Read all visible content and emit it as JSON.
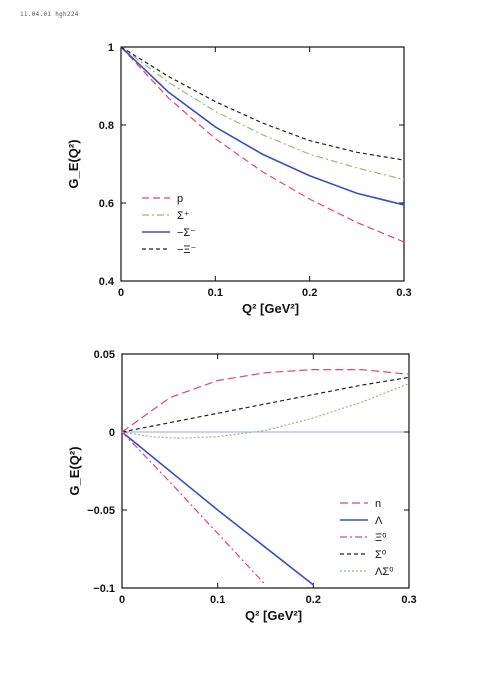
{
  "header": {
    "text": "11.04.01 hgh224"
  },
  "chart_data": [
    {
      "type": "line",
      "title": "",
      "xlabel": "Q² [GeV²]",
      "ylabel": "G_E(Q²)",
      "xlim": [
        0,
        0.3
      ],
      "ylim": [
        0.4,
        1.0
      ],
      "xticks": [
        "0",
        "0.1",
        "0.2",
        "0.3"
      ],
      "yticks": [
        "0.4",
        "0.6",
        "0.8",
        "1"
      ],
      "legend_position": "lower-left",
      "series": [
        {
          "name": "p",
          "color": "#e0457b",
          "dash": "7,4",
          "x": [
            0,
            0.05,
            0.1,
            0.15,
            0.2,
            0.25,
            0.3
          ],
          "values": [
            1.0,
            0.87,
            0.765,
            0.68,
            0.61,
            0.55,
            0.5
          ]
        },
        {
          "name": "Σ⁺",
          "color": "#8fbf78",
          "dash": "7,3,2,3",
          "x": [
            0,
            0.05,
            0.1,
            0.15,
            0.2,
            0.25,
            0.3
          ],
          "values": [
            1.0,
            0.91,
            0.835,
            0.775,
            0.725,
            0.69,
            0.66
          ]
        },
        {
          "name": "−Σ⁻",
          "color": "#3a4fc8",
          "dash": "",
          "x": [
            0,
            0.05,
            0.1,
            0.15,
            0.2,
            0.25,
            0.3
          ],
          "values": [
            1.0,
            0.885,
            0.795,
            0.725,
            0.67,
            0.625,
            0.595
          ]
        },
        {
          "name": "−Ξ⁻",
          "color": "#222222",
          "dash": "4,3",
          "x": [
            0,
            0.05,
            0.1,
            0.15,
            0.2,
            0.25,
            0.3
          ],
          "values": [
            1.0,
            0.925,
            0.86,
            0.805,
            0.76,
            0.73,
            0.71
          ]
        }
      ]
    },
    {
      "type": "line",
      "title": "",
      "xlabel": "Q² [GeV²]",
      "ylabel": "G_E(Q²)",
      "xlim": [
        0,
        0.3
      ],
      "ylim": [
        -0.1,
        0.05
      ],
      "xticks": [
        "0",
        "0.1",
        "0.2",
        "0.3"
      ],
      "yticks": [
        "−0.1",
        "−0.05",
        "0",
        "0.05"
      ],
      "legend_position": "lower-right",
      "series": [
        {
          "name": "n",
          "color": "#e0457b",
          "dash": "8,4",
          "x": [
            0,
            0.05,
            0.1,
            0.15,
            0.2,
            0.25,
            0.3
          ],
          "values": [
            0,
            0.022,
            0.033,
            0.038,
            0.04,
            0.04,
            0.037
          ]
        },
        {
          "name": "Λ",
          "color": "#3a4fc8",
          "dash": "",
          "x": [
            0,
            0.05,
            0.1,
            0.15,
            0.2
          ],
          "values": [
            0,
            -0.025,
            -0.05,
            -0.074,
            -0.098
          ]
        },
        {
          "name": "Ξ⁰",
          "color": "#e0457b",
          "dash": "7,3,2,3",
          "x": [
            0,
            0.05,
            0.1,
            0.15
          ],
          "values": [
            0,
            -0.032,
            -0.065,
            -0.098
          ]
        },
        {
          "name": "Σ⁰",
          "color": "#222222",
          "dash": "4,3",
          "x": [
            0,
            0.05,
            0.1,
            0.15,
            0.2,
            0.25,
            0.3
          ],
          "values": [
            0,
            0.006,
            0.012,
            0.018,
            0.024,
            0.03,
            0.035
          ]
        },
        {
          "name": "ΛΣ⁰",
          "color": "#8fbf78",
          "dash": "2,2",
          "x": [
            0,
            0.03,
            0.06,
            0.1,
            0.15,
            0.2,
            0.25,
            0.3
          ],
          "values": [
            0,
            -0.003,
            -0.004,
            -0.003,
            0.001,
            0.009,
            0.019,
            0.031
          ]
        }
      ]
    }
  ]
}
